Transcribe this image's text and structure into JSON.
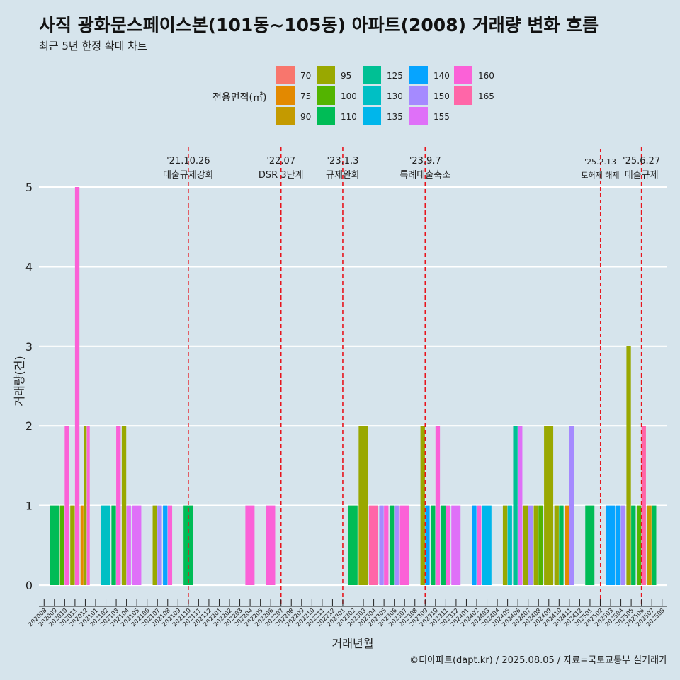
{
  "chart_data": {
    "type": "bar",
    "title": "사직 광화문스페이스본(101동~105동) 아파트(2008) 거래량 변화 흐름",
    "subtitle": "최근 5년 한정 확대 차트",
    "xlabel": "거래년월",
    "ylabel": "거래량(건)",
    "ylim": [
      0,
      5
    ],
    "y_ticks": [
      0,
      1,
      2,
      3,
      4,
      5
    ],
    "legend_title": "전용면적(㎡)",
    "legend": [
      {
        "key": "70",
        "color": "#F8766D"
      },
      {
        "key": "75",
        "color": "#E38900"
      },
      {
        "key": "90",
        "color": "#C49A00"
      },
      {
        "key": "95",
        "color": "#99A800"
      },
      {
        "key": "100",
        "color": "#53B400"
      },
      {
        "key": "110",
        "color": "#00BC56"
      },
      {
        "key": "125",
        "color": "#00C094"
      },
      {
        "key": "130",
        "color": "#00BFC4"
      },
      {
        "key": "135",
        "color": "#00B6EB"
      },
      {
        "key": "140",
        "color": "#06A4FF"
      },
      {
        "key": "150",
        "color": "#A58AFF"
      },
      {
        "key": "155",
        "color": "#DF70F8"
      },
      {
        "key": "160",
        "color": "#FB61D7"
      },
      {
        "key": "165",
        "color": "#FF66A8"
      }
    ],
    "categories": [
      "202008",
      "202009",
      "202010",
      "202011",
      "202012",
      "202101",
      "202102",
      "202103",
      "202104",
      "202105",
      "202106",
      "202107",
      "202108",
      "202109",
      "202110",
      "202111",
      "202112",
      "202201",
      "202202",
      "202203",
      "202204",
      "202205",
      "202206",
      "202207",
      "202208",
      "202209",
      "202210",
      "202211",
      "202212",
      "202301",
      "202302",
      "202303",
      "202304",
      "202305",
      "202306",
      "202307",
      "202308",
      "202309",
      "202310",
      "202311",
      "202312",
      "202401",
      "202402",
      "202403",
      "202404",
      "202405",
      "202406",
      "202407",
      "202408",
      "202409",
      "202410",
      "202411",
      "202412",
      "202501",
      "202502",
      "202503",
      "202504",
      "202505",
      "202506",
      "202507",
      "202508"
    ],
    "bars": [
      {
        "month": "202009",
        "area": "110",
        "value": 1
      },
      {
        "month": "202010",
        "area": "100",
        "value": 1
      },
      {
        "month": "202010",
        "area": "160",
        "value": 2
      },
      {
        "month": "202011",
        "area": "95",
        "value": 1
      },
      {
        "month": "202011",
        "area": "160",
        "value": 5
      },
      {
        "month": "202012",
        "area": "75",
        "value": 1
      },
      {
        "month": "202012",
        "area": "95",
        "value": 2
      },
      {
        "month": "202012",
        "area": "160",
        "value": 2
      },
      {
        "month": "202102",
        "area": "130",
        "value": 1
      },
      {
        "month": "202103",
        "area": "110",
        "value": 1
      },
      {
        "month": "202103",
        "area": "160",
        "value": 2
      },
      {
        "month": "202104",
        "area": "95",
        "value": 2
      },
      {
        "month": "202104",
        "area": "155",
        "value": 1
      },
      {
        "month": "202105",
        "area": "155",
        "value": 1
      },
      {
        "month": "202107",
        "area": "95",
        "value": 1
      },
      {
        "month": "202107",
        "area": "150",
        "value": 1
      },
      {
        "month": "202108",
        "area": "140",
        "value": 1
      },
      {
        "month": "202108",
        "area": "160",
        "value": 1
      },
      {
        "month": "202110",
        "area": "110",
        "value": 1
      },
      {
        "month": "202204",
        "area": "160",
        "value": 1
      },
      {
        "month": "202206",
        "area": "160",
        "value": 1
      },
      {
        "month": "202302",
        "area": "110",
        "value": 1
      },
      {
        "month": "202303",
        "area": "95",
        "value": 2
      },
      {
        "month": "202304",
        "area": "165",
        "value": 1
      },
      {
        "month": "202305",
        "area": "150",
        "value": 1
      },
      {
        "month": "202305",
        "area": "160",
        "value": 1
      },
      {
        "month": "202306",
        "area": "110",
        "value": 1
      },
      {
        "month": "202306",
        "area": "150",
        "value": 1
      },
      {
        "month": "202307",
        "area": "160",
        "value": 1
      },
      {
        "month": "202309",
        "area": "95",
        "value": 2
      },
      {
        "month": "202309",
        "area": "140",
        "value": 1
      },
      {
        "month": "202310",
        "area": "110",
        "value": 1
      },
      {
        "month": "202310",
        "area": "160",
        "value": 2
      },
      {
        "month": "202311",
        "area": "110",
        "value": 1
      },
      {
        "month": "202311",
        "area": "160",
        "value": 1
      },
      {
        "month": "202312",
        "area": "155",
        "value": 1
      },
      {
        "month": "202402",
        "area": "140",
        "value": 1
      },
      {
        "month": "202402",
        "area": "160",
        "value": 1
      },
      {
        "month": "202403",
        "area": "135",
        "value": 1
      },
      {
        "month": "202405",
        "area": "95",
        "value": 1
      },
      {
        "month": "202405",
        "area": "130",
        "value": 1
      },
      {
        "month": "202406",
        "area": "125",
        "value": 2
      },
      {
        "month": "202406",
        "area": "155",
        "value": 2
      },
      {
        "month": "202407",
        "area": "95",
        "value": 1
      },
      {
        "month": "202407",
        "area": "150",
        "value": 1
      },
      {
        "month": "202408",
        "area": "95",
        "value": 1
      },
      {
        "month": "202408",
        "area": "100",
        "value": 1
      },
      {
        "month": "202409",
        "area": "95",
        "value": 2
      },
      {
        "month": "202410",
        "area": "95",
        "value": 1
      },
      {
        "month": "202410",
        "area": "110",
        "value": 1
      },
      {
        "month": "202411",
        "area": "75",
        "value": 1
      },
      {
        "month": "202411",
        "area": "150",
        "value": 2
      },
      {
        "month": "202501",
        "area": "110",
        "value": 1
      },
      {
        "month": "202503",
        "area": "140",
        "value": 1
      },
      {
        "month": "202504",
        "area": "140",
        "value": 1
      },
      {
        "month": "202504",
        "area": "150",
        "value": 1
      },
      {
        "month": "202505",
        "area": "95",
        "value": 3
      },
      {
        "month": "202505",
        "area": "110",
        "value": 1
      },
      {
        "month": "202506",
        "area": "100",
        "value": 1
      },
      {
        "month": "202506",
        "area": "165",
        "value": 2
      },
      {
        "month": "202507",
        "area": "90",
        "value": 1
      },
      {
        "month": "202507",
        "area": "110",
        "value": 1
      }
    ],
    "annotations": [
      {
        "month": "202110",
        "date": "'21.10.26",
        "text": "대출규제강화",
        "style": "bold"
      },
      {
        "month": "202207",
        "date": "'22.07",
        "text": "DSR 3단계",
        "style": "bold"
      },
      {
        "month": "202301",
        "date": "'23.1.3",
        "text": "규제완화",
        "style": "bold"
      },
      {
        "month": "202309",
        "date": "'23.9.7",
        "text": "특례대출축소",
        "style": "bold"
      },
      {
        "month": "202502",
        "date": "'25.2.13",
        "text": "토허제 해제",
        "style": "thin"
      },
      {
        "month": "202506",
        "date": "'25.6.27",
        "text": "대출규제",
        "style": "bold"
      }
    ],
    "caption": "©디아파트(dapt.kr) / 2025.08.05 / 자료=국토교통부 실거래가"
  }
}
